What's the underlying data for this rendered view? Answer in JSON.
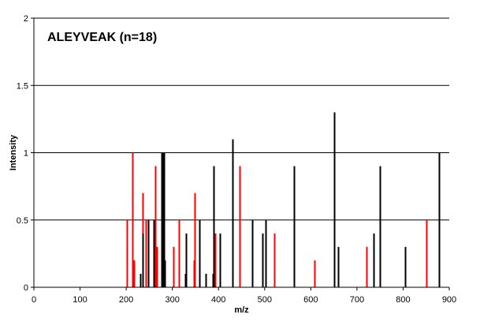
{
  "chart_data": {
    "type": "bar",
    "title": "ALEYVEAK (n=18)",
    "xlabel": "m/z",
    "ylabel": "Intensity",
    "xlim": [
      0,
      900
    ],
    "ylim": [
      0,
      2
    ],
    "x_ticks": [
      "0",
      "100",
      "200",
      "300",
      "400",
      "500",
      "600",
      "700",
      "800",
      "900"
    ],
    "y_ticks": [
      "0",
      "0.5",
      "1",
      "1.5",
      "2"
    ],
    "grid": true,
    "colors": {
      "red_series": "#ff0000",
      "black_series": "#000000"
    },
    "series": [
      {
        "color": "#ff0000",
        "points": [
          {
            "x": 201,
            "y": 0.5
          },
          {
            "x": 214,
            "y": 1.0
          },
          {
            "x": 217,
            "y": 0.2
          },
          {
            "x": 235,
            "y": 0.7
          },
          {
            "x": 242,
            "y": 0.5
          },
          {
            "x": 263,
            "y": 0.9
          },
          {
            "x": 266,
            "y": 0.3
          },
          {
            "x": 302,
            "y": 0.3
          },
          {
            "x": 315,
            "y": 0.5
          },
          {
            "x": 347,
            "y": 0.2
          },
          {
            "x": 349,
            "y": 0.7
          },
          {
            "x": 392,
            "y": 0.4
          },
          {
            "x": 445,
            "y": 0.9
          },
          {
            "x": 521,
            "y": 0.4
          },
          {
            "x": 608,
            "y": 0.2
          },
          {
            "x": 720,
            "y": 0.3
          },
          {
            "x": 850,
            "y": 0.5
          }
        ]
      },
      {
        "color": "#000000",
        "points": [
          {
            "x": 230,
            "y": 0.1
          },
          {
            "x": 236,
            "y": 0.4
          },
          {
            "x": 248,
            "y": 0.5
          },
          {
            "x": 260,
            "y": 0.5
          },
          {
            "x": 276,
            "y": 1.0
          },
          {
            "x": 278,
            "y": 1.0
          },
          {
            "x": 281,
            "y": 1.0
          },
          {
            "x": 283,
            "y": 0.2
          },
          {
            "x": 328,
            "y": 0.1
          },
          {
            "x": 330,
            "y": 0.4
          },
          {
            "x": 358,
            "y": 0.5
          },
          {
            "x": 373,
            "y": 0.1
          },
          {
            "x": 387,
            "y": 0.1
          },
          {
            "x": 390,
            "y": 0.9
          },
          {
            "x": 403,
            "y": 0.4
          },
          {
            "x": 430,
            "y": 1.1
          },
          {
            "x": 473,
            "y": 0.5
          },
          {
            "x": 495,
            "y": 0.4
          },
          {
            "x": 502,
            "y": 0.5
          },
          {
            "x": 564,
            "y": 0.9
          },
          {
            "x": 650,
            "y": 1.3
          },
          {
            "x": 659,
            "y": 0.3
          },
          {
            "x": 736,
            "y": 0.4
          },
          {
            "x": 749,
            "y": 0.9
          },
          {
            "x": 805,
            "y": 0.3
          },
          {
            "x": 877,
            "y": 1.0
          }
        ]
      }
    ]
  }
}
